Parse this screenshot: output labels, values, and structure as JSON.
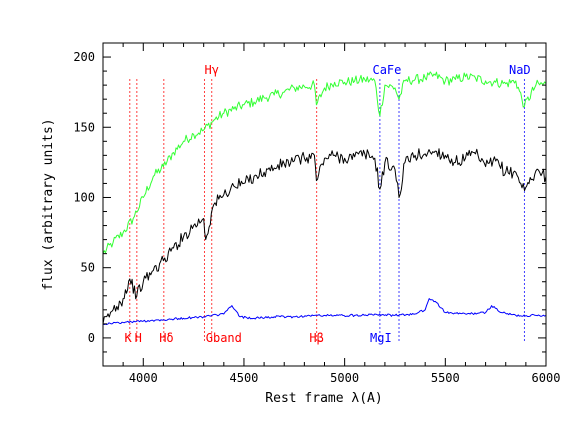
{
  "chart_data": {
    "type": "line",
    "xlabel": "Rest frame λ(A)",
    "ylabel": "flux (arbitrary units)",
    "xlim": [
      3800,
      6000
    ],
    "ylim": [
      -20,
      210
    ],
    "x_ticks": [
      4000,
      4500,
      5000,
      5500,
      6000
    ],
    "y_ticks": [
      0,
      50,
      100,
      150,
      200
    ],
    "grid": false,
    "series": [
      {
        "color": "#33ff33",
        "x": [
          3800,
          3850,
          3900,
          3950,
          4000,
          4050,
          4100,
          4150,
          4200,
          4250,
          4300,
          4350,
          4400,
          4450,
          4500,
          4550,
          4600,
          4650,
          4700,
          4750,
          4800,
          4850,
          4860,
          4900,
          4950,
          5000,
          5050,
          5100,
          5150,
          5175,
          5200,
          5250,
          5270,
          5300,
          5350,
          5400,
          5450,
          5500,
          5550,
          5600,
          5650,
          5700,
          5750,
          5800,
          5850,
          5893,
          5950,
          6000
        ],
        "values": [
          60,
          68,
          75,
          85,
          100,
          115,
          122,
          132,
          140,
          145,
          148,
          155,
          160,
          163,
          166,
          168,
          171,
          173,
          175,
          178,
          179,
          180,
          166,
          178,
          182,
          182,
          183,
          184,
          183,
          158,
          180,
          178,
          170,
          183,
          184,
          185,
          187,
          183,
          184,
          186,
          185,
          183,
          182,
          181,
          183,
          165,
          180,
          181
        ]
      },
      {
        "color": "#000000",
        "x": [
          3800,
          3850,
          3900,
          3933,
          3968,
          4000,
          4050,
          4100,
          4150,
          4200,
          4250,
          4300,
          4310,
          4350,
          4400,
          4450,
          4500,
          4550,
          4600,
          4650,
          4700,
          4750,
          4800,
          4850,
          4860,
          4900,
          4950,
          5000,
          5050,
          5100,
          5150,
          5175,
          5200,
          5250,
          5270,
          5300,
          5350,
          5400,
          5450,
          5500,
          5550,
          5600,
          5650,
          5700,
          5750,
          5800,
          5850,
          5893,
          5950,
          6000
        ],
        "values": [
          10,
          20,
          28,
          42,
          30,
          40,
          48,
          55,
          64,
          72,
          80,
          85,
          70,
          95,
          102,
          108,
          110,
          115,
          118,
          121,
          124,
          126,
          128,
          130,
          112,
          128,
          130,
          128,
          129,
          131,
          128,
          106,
          125,
          120,
          100,
          125,
          130,
          131,
          133,
          130,
          125,
          128,
          131,
          122,
          126,
          118,
          118,
          105,
          119,
          115
        ]
      },
      {
        "color": "#0000ff",
        "x": [
          3800,
          3900,
          4000,
          4100,
          4200,
          4300,
          4400,
          4440,
          4480,
          4550,
          4650,
          4750,
          4850,
          4950,
          5050,
          5150,
          5250,
          5350,
          5400,
          5420,
          5450,
          5500,
          5600,
          5700,
          5730,
          5780,
          5850,
          5950,
          6000
        ],
        "values": [
          10,
          11,
          12,
          13,
          14,
          15,
          17,
          23,
          15,
          14,
          15,
          15,
          16,
          16,
          16,
          17,
          16,
          17,
          20,
          28,
          26,
          18,
          17,
          18,
          23,
          18,
          16,
          16,
          16
        ]
      }
    ],
    "lines": [
      {
        "label": "K",
        "x": 3933,
        "color": "#ff0000",
        "text_pos": "bottom"
      },
      {
        "label": "H",
        "x": 3968,
        "color": "#ff0000",
        "text_pos": "bottom"
      },
      {
        "label": "Hδ",
        "x": 4102,
        "color": "#ff0000",
        "text_pos": "bottom"
      },
      {
        "label": "Gband",
        "x": 4304,
        "color": "#ff0000",
        "text_pos": "bottom"
      },
      {
        "label": "Hγ",
        "x": 4340,
        "color": "#ff0000",
        "text_pos": "top"
      },
      {
        "label": "Hβ",
        "x": 4861,
        "color": "#ff0000",
        "text_pos": "bottom"
      },
      {
        "label": "MgI",
        "x": 5175,
        "color": "#0000ff",
        "text_pos": "bottom"
      },
      {
        "label": "CaFe",
        "x": 5270,
        "color": "#0000ff",
        "text_pos": "top"
      },
      {
        "label": "NaD",
        "x": 5893,
        "color": "#0000ff",
        "text_pos": "top"
      }
    ]
  }
}
